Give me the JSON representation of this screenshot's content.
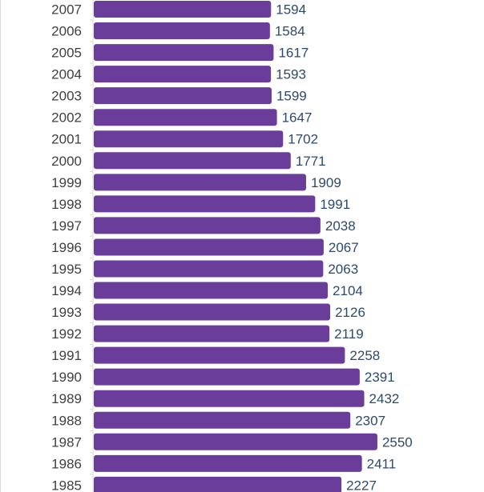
{
  "chart_data": {
    "type": "bar",
    "orientation": "horizontal",
    "categories": [
      "2007",
      "2006",
      "2005",
      "2004",
      "2003",
      "2002",
      "2001",
      "2000",
      "1999",
      "1998",
      "1997",
      "1996",
      "1995",
      "1994",
      "1993",
      "1992",
      "1991",
      "1990",
      "1989",
      "1988",
      "1987",
      "1986",
      "1985"
    ],
    "values": [
      1594,
      1584,
      1617,
      1593,
      1599,
      1647,
      1702,
      1771,
      1909,
      1991,
      2038,
      2067,
      2063,
      2104,
      2126,
      2119,
      2258,
      2391,
      2432,
      2307,
      2550,
      2411,
      2227
    ],
    "title": "",
    "xlabel": "",
    "ylabel": "",
    "data_labels": true,
    "grid": false,
    "legend": "none",
    "bar_color": "#6a3d9a",
    "label_color": "#2e4a6b",
    "category_color": "#404040"
  }
}
